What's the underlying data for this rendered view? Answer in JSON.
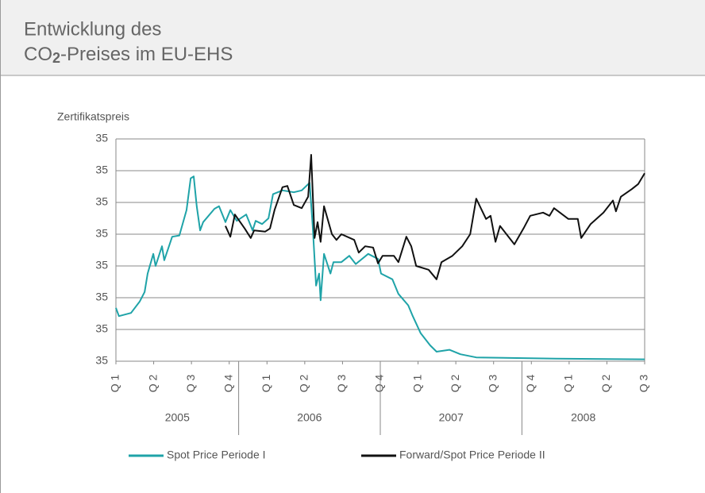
{
  "chart_data": {
    "type": "line",
    "title": [
      "Entwicklung des",
      {
        "main": "CO",
        "sub": "2",
        "rest": "-Preises im EU-EHS"
      }
    ],
    "y_label": "Zertifikatspreis",
    "xlim": [
      0,
      14
    ],
    "xticks": [
      {
        "value": 0,
        "label": "Q 1"
      },
      {
        "value": 1,
        "label": "Q 2"
      },
      {
        "value": 2,
        "label": "Q 3"
      },
      {
        "value": 3,
        "label": "Q 4"
      },
      {
        "value": 4,
        "label": "Q 1"
      },
      {
        "value": 5,
        "label": "Q 2"
      },
      {
        "value": 6,
        "label": "Q 3"
      },
      {
        "value": 7,
        "label": "Q 4"
      },
      {
        "value": 8,
        "label": "Q 1"
      },
      {
        "value": 9,
        "label": "Q 2"
      },
      {
        "value": 10,
        "label": "Q 3"
      },
      {
        "value": 11,
        "label": "Q 4"
      },
      {
        "value": 12,
        "label": "Q 1"
      },
      {
        "value": 13,
        "label": "Q 2"
      },
      {
        "value": 14,
        "label": "Q 3"
      }
    ],
    "years": [
      "2005",
      "2006",
      "2007",
      "2008"
    ],
    "ylim": [
      0,
      35
    ],
    "yticks": [
      {
        "value": 0,
        "label": "35"
      },
      {
        "value": 5,
        "label": "35"
      },
      {
        "value": 10,
        "label": "35"
      },
      {
        "value": 15,
        "label": "35"
      },
      {
        "value": 20,
        "label": "35"
      },
      {
        "value": 25,
        "label": "35"
      },
      {
        "value": 30,
        "label": "35"
      },
      {
        "value": 35,
        "label": "35"
      }
    ],
    "grid": true,
    "series": [
      {
        "name": "Spot Price Periode I",
        "color": "#1fa3a8",
        "x": [
          0,
          0.08,
          0.4,
          0.63,
          0.76,
          0.84,
          0.99,
          1.05,
          1.22,
          1.28,
          1.49,
          1.68,
          1.87,
          1.98,
          2.06,
          2.14,
          2.23,
          2.31,
          2.61,
          2.73,
          2.9,
          3.03,
          3.2,
          3.45,
          3.62,
          3.7,
          3.87,
          4.04,
          4.16,
          4.41,
          4.71,
          4.92,
          5.13,
          5.21,
          5.3,
          5.38,
          5.42,
          5.51,
          5.68,
          5.76,
          5.97,
          6.18,
          6.35,
          6.68,
          6.94,
          7.02,
          7.32,
          7.48,
          7.74,
          7.86,
          8.07,
          8.32,
          8.49,
          8.83,
          9.12,
          9.54,
          11.65,
          14.0
        ],
        "values": [
          8.4,
          7.1,
          7.6,
          9.4,
          10.9,
          13.8,
          16.9,
          15.0,
          18.1,
          15.9,
          19.6,
          19.8,
          23.8,
          28.8,
          29.1,
          24.4,
          20.6,
          21.9,
          24.0,
          24.4,
          21.9,
          23.8,
          22.1,
          23.1,
          20.6,
          22.1,
          21.6,
          22.5,
          26.3,
          26.9,
          26.6,
          26.9,
          28.1,
          21.3,
          11.9,
          13.8,
          9.6,
          16.9,
          13.8,
          15.6,
          15.6,
          16.6,
          15.3,
          16.9,
          16.1,
          13.8,
          12.9,
          10.6,
          8.8,
          7.1,
          4.4,
          2.5,
          1.5,
          1.8,
          1.1,
          0.6,
          0.4,
          0.3
        ]
      },
      {
        "name": "Forward/Spot Price Periode II",
        "color": "#111111",
        "x": [
          2.9,
          3.03,
          3.15,
          3.41,
          3.57,
          3.66,
          3.95,
          4.08,
          4.2,
          4.41,
          4.54,
          4.71,
          4.92,
          5.09,
          5.17,
          5.26,
          5.34,
          5.42,
          5.51,
          5.72,
          5.84,
          5.97,
          6.31,
          6.43,
          6.6,
          6.81,
          6.94,
          7.06,
          7.36,
          7.48,
          7.69,
          7.82,
          7.95,
          8.28,
          8.49,
          8.62,
          8.91,
          9.17,
          9.38,
          9.54,
          9.8,
          9.92,
          10.05,
          10.17,
          10.55,
          10.81,
          10.97,
          11.31,
          11.48,
          11.6,
          11.98,
          12.23,
          12.32,
          12.57,
          12.91,
          13.16,
          13.24,
          13.37,
          13.66,
          13.83,
          14.0
        ],
        "values": [
          21.3,
          19.6,
          23.1,
          20.9,
          19.4,
          20.6,
          20.4,
          20.9,
          23.8,
          27.4,
          27.6,
          24.6,
          24.1,
          25.9,
          32.5,
          19.4,
          21.9,
          18.8,
          24.4,
          20.0,
          19.1,
          20.0,
          19.1,
          17.1,
          18.1,
          17.9,
          15.4,
          16.6,
          16.6,
          15.6,
          19.6,
          18.1,
          15.0,
          14.4,
          12.9,
          15.6,
          16.6,
          18.1,
          20.0,
          25.6,
          22.4,
          22.9,
          18.8,
          21.3,
          18.4,
          21.1,
          22.9,
          23.4,
          22.9,
          24.1,
          22.4,
          22.4,
          19.4,
          21.6,
          23.4,
          25.3,
          23.6,
          25.9,
          27.1,
          27.9,
          29.6
        ]
      }
    ]
  }
}
